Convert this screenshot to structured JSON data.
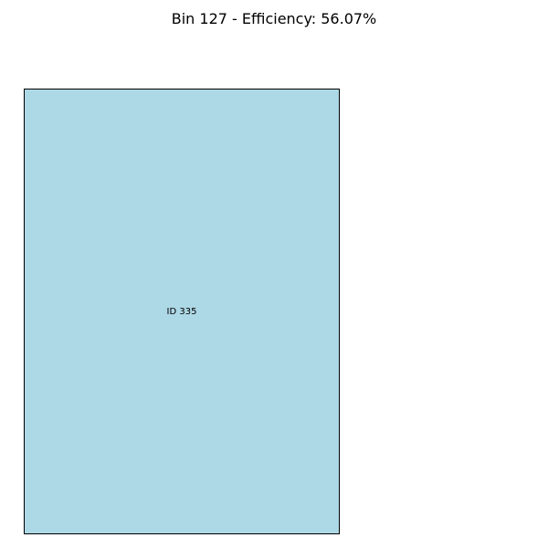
{
  "title": "Bin 127 - Efficiency: 56.07%",
  "bin": {
    "id": 127,
    "efficiency_percent": 56.07
  },
  "items": [
    {
      "label": "ID 335",
      "fill": "#add8e6",
      "stroke": "#000000"
    }
  ]
}
